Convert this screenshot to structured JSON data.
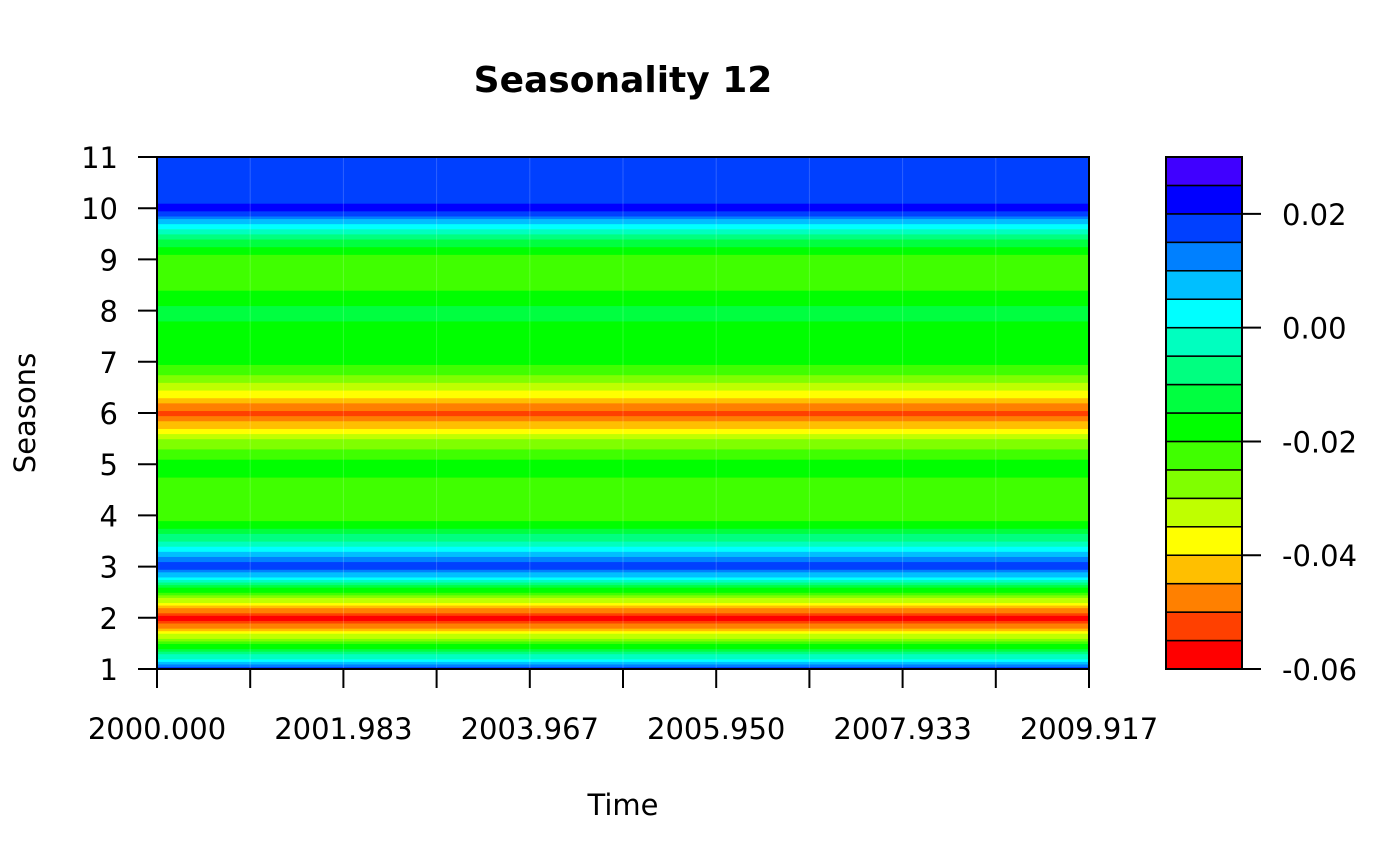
{
  "chart_data": {
    "type": "heatmap",
    "title": "Seasonality 12",
    "xlabel": "Time",
    "ylabel": "Seasons",
    "x_ticks": [
      "2000.000",
      "2001.983",
      "2003.967",
      "2005.950",
      "2007.933",
      "2009.917"
    ],
    "x_range": [
      2000.0,
      2009.917
    ],
    "y_ticks": [
      "1",
      "2",
      "3",
      "4",
      "5",
      "6",
      "7",
      "8",
      "9",
      "10",
      "11"
    ],
    "y_range": [
      1,
      11
    ],
    "colorbar": {
      "tick_labels": [
        "0.02",
        "0.00",
        "-0.02",
        "-0.04",
        "-0.06"
      ],
      "tick_values": [
        0.02,
        0.0,
        -0.02,
        -0.04,
        -0.06
      ],
      "breaks": [
        -0.06,
        -0.055,
        -0.05,
        -0.045,
        -0.04,
        -0.035,
        -0.03,
        -0.025,
        -0.02,
        -0.015,
        -0.01,
        -0.005,
        0.0,
        0.005,
        0.01,
        0.015,
        0.02,
        0.025,
        0.03
      ],
      "colors": [
        "#ff0000",
        "#ff4000",
        "#ff8000",
        "#ffbf00",
        "#ffff00",
        "#bfff00",
        "#80ff00",
        "#40ff00",
        "#00ff00",
        "#00ff40",
        "#00ff80",
        "#00ffbf",
        "#00ffff",
        "#00bfff",
        "#0080ff",
        "#0040ff",
        "#0000ff",
        "#4000ff"
      ]
    },
    "season_profile": {
      "seasons": [
        1.0,
        1.5,
        2.0,
        2.5,
        3.0,
        3.5,
        4.0,
        4.5,
        5.0,
        5.5,
        6.0,
        6.5,
        7.0,
        7.5,
        8.0,
        8.5,
        9.0,
        9.5,
        10.0,
        10.3,
        11.0
      ],
      "values": [
        0.018,
        -0.022,
        -0.058,
        -0.022,
        0.02,
        -0.005,
        -0.025,
        -0.023,
        -0.017,
        -0.03,
        -0.053,
        -0.033,
        -0.018,
        -0.018,
        -0.013,
        -0.022,
        -0.025,
        -0.005,
        0.022,
        0.017,
        0.017
      ]
    },
    "grid": true
  }
}
